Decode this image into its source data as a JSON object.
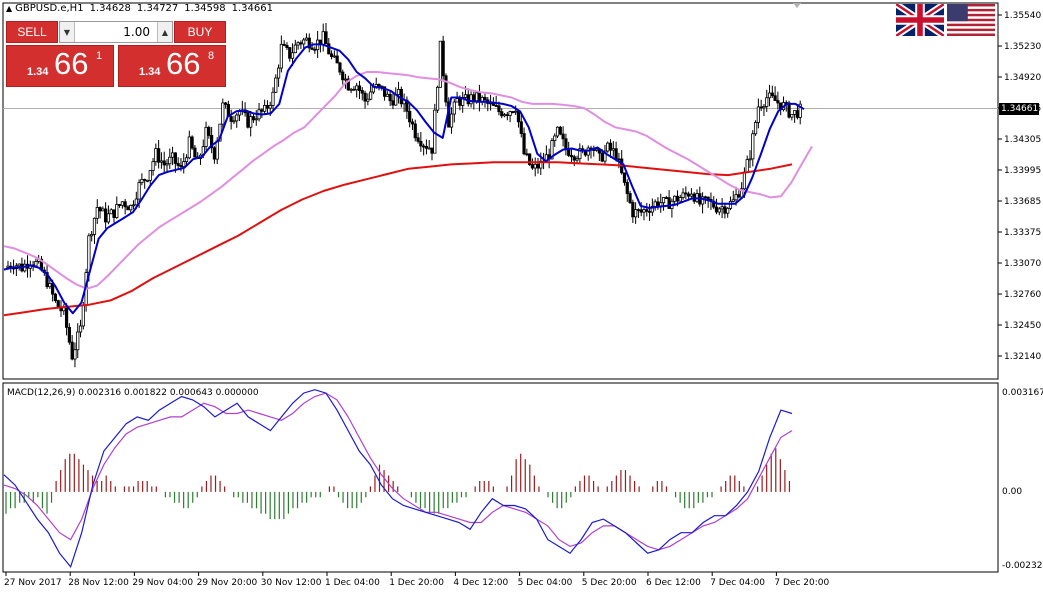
{
  "header": {
    "symbol": "GBPUSD.e,H1",
    "open": "1.34628",
    "high": "1.34727",
    "low": "1.34598",
    "close": "1.34661"
  },
  "trade_panel": {
    "sell_label": "SELL",
    "buy_label": "BUY",
    "lot_value": "1.00",
    "sell_price": {
      "prefix": "1.34",
      "big": "66",
      "sup": "1"
    },
    "buy_price": {
      "prefix": "1.34",
      "big": "66",
      "sup": "8"
    }
  },
  "flags": [
    "uk-flag-icon",
    "us-flag-icon"
  ],
  "macd": {
    "label": "MACD(12,26,9) 0.002316 0.001822 0.000643 0.000000",
    "axis_top": "0.003167",
    "axis_zero": "0.00",
    "axis_bottom": "-0.002323"
  },
  "current_price": "1.34661",
  "colors": {
    "bull": "#9a1c1c",
    "bear": "#2e7d32",
    "ma_fast": "#0000cc",
    "ma_mid": "#e08fe0",
    "ma_slow": "#e01010",
    "macd_line": "#1a1ad0",
    "signal_line": "#b040d0",
    "sell_buy": "#d32f2f"
  },
  "chart_data": {
    "type": "candlestick",
    "price_axis_ticks": [
      "1.35540",
      "1.35230",
      "1.34920",
      "1.34615",
      "1.34305",
      "1.33995",
      "1.33685",
      "1.33375",
      "1.33070",
      "1.32760",
      "1.32450",
      "1.32140"
    ],
    "time_axis_ticks": [
      "27 Nov 2017",
      "28 Nov 12:00",
      "29 Nov 04:00",
      "29 Nov 20:00",
      "30 Nov 12:00",
      "1 Dec 04:00",
      "1 Dec 20:00",
      "4 Dec 12:00",
      "5 Dec 04:00",
      "5 Dec 20:00",
      "6 Dec 12:00",
      "7 Dec 04:00",
      "7 Dec 20:00"
    ],
    "ylim": [
      1.3214,
      1.3566
    ],
    "macd_ylim": [
      -0.002323,
      0.003167
    ],
    "close_path": [
      1.3318,
      1.3322,
      1.3318,
      1.3325,
      1.332,
      1.3305,
      1.3285,
      1.3275,
      1.3235,
      1.326,
      1.3345,
      1.3375,
      1.3365,
      1.337,
      1.338,
      1.3375,
      1.3395,
      1.3405,
      1.3425,
      1.3415,
      1.342,
      1.341,
      1.3435,
      1.3415,
      1.3445,
      1.3425,
      1.347,
      1.346,
      1.3465,
      1.3455,
      1.3462,
      1.3465,
      1.348,
      1.3525,
      1.3518,
      1.353,
      1.3532,
      1.3528,
      1.3534,
      1.3515,
      1.3505,
      1.349,
      1.349,
      1.3475,
      1.3488,
      1.3485,
      1.3475,
      1.348,
      1.3466,
      1.3445,
      1.3435,
      1.343,
      1.3525,
      1.3455,
      1.3475,
      1.3475,
      1.3478,
      1.3475,
      1.347,
      1.3465,
      1.3465,
      1.347,
      1.3425,
      1.341,
      1.3415,
      1.3425,
      1.3445,
      1.343,
      1.3425,
      1.3425,
      1.3435,
      1.342,
      1.343,
      1.3425,
      1.3395,
      1.337,
      1.337,
      1.3375,
      1.338,
      1.3378,
      1.3382,
      1.3385,
      1.339,
      1.3378,
      1.338,
      1.3375,
      1.3375,
      1.338,
      1.3395,
      1.3425,
      1.347,
      1.3478,
      1.3475,
      1.347,
      1.3462,
      1.3466
    ],
    "series": [
      {
        "name": "MA fast",
        "values": [
          1.3316,
          1.3318,
          1.3318,
          1.332,
          1.3318,
          1.3312,
          1.33,
          1.3285,
          1.3275,
          1.3285,
          1.3315,
          1.3345,
          1.3355,
          1.336,
          1.3365,
          1.337,
          1.3382,
          1.3395,
          1.3405,
          1.3408,
          1.341,
          1.3412,
          1.342,
          1.3422,
          1.3432,
          1.3438,
          1.346,
          1.3465,
          1.3466,
          1.3463,
          1.3462,
          1.3463,
          1.3472,
          1.3503,
          1.3515,
          1.3525,
          1.3528,
          1.3528,
          1.3525,
          1.3522,
          1.3514,
          1.3502,
          1.3496,
          1.3488,
          1.3487,
          1.3484,
          1.3478,
          1.3474,
          1.3466,
          1.3455,
          1.3445,
          1.344,
          1.3478,
          1.3478,
          1.3475,
          1.3474,
          1.3474,
          1.3473,
          1.3472,
          1.347,
          1.3465,
          1.345,
          1.3425,
          1.3418,
          1.3424,
          1.3429,
          1.343,
          1.3428,
          1.3428,
          1.3431,
          1.3425,
          1.342,
          1.3415,
          1.3395,
          1.3376,
          1.3374,
          1.3375,
          1.3376,
          1.3377,
          1.338,
          1.3383,
          1.3383,
          1.3381,
          1.3378,
          1.3378,
          1.3378,
          1.3385,
          1.3403,
          1.3425,
          1.3448,
          1.3465,
          1.3472,
          1.3472,
          1.3467
        ]
      },
      {
        "name": "MA mid",
        "values": [
          1.3338,
          1.3336,
          1.3332,
          1.3328,
          1.3322,
          1.3315,
          1.3308,
          1.3302,
          1.3298,
          1.3301,
          1.331,
          1.332,
          1.333,
          1.334,
          1.3348,
          1.3356,
          1.3362,
          1.3368,
          1.3374,
          1.338,
          1.3387,
          1.3394,
          1.3402,
          1.341,
          1.3418,
          1.3425,
          1.3432,
          1.3438,
          1.3445,
          1.345,
          1.346,
          1.347,
          1.348,
          1.3492,
          1.3498,
          1.3502,
          1.3502,
          1.3501,
          1.35,
          1.3499,
          1.3497,
          1.3496,
          1.3495,
          1.3492,
          1.3488,
          1.3485,
          1.3483,
          1.3482,
          1.348,
          1.3478,
          1.3474,
          1.3472,
          1.3472,
          1.3472,
          1.3471,
          1.347,
          1.3468,
          1.3462,
          1.3455,
          1.345,
          1.3448,
          1.3446,
          1.3442,
          1.3436,
          1.343,
          1.3425,
          1.342,
          1.3414,
          1.3408,
          1.3402,
          1.3396,
          1.3391,
          1.3389,
          1.3387,
          1.3384,
          1.3385,
          1.3398,
          1.3415,
          1.3432
        ]
      },
      {
        "name": "MA slow",
        "values": [
          1.3273,
          1.3276,
          1.3279,
          1.3281,
          1.3283,
          1.3287,
          1.3296,
          1.3308,
          1.3318,
          1.3328,
          1.3338,
          1.3348,
          1.336,
          1.3372,
          1.3382,
          1.339,
          1.3396,
          1.3401,
          1.3406,
          1.3411,
          1.3413,
          1.3415,
          1.3416,
          1.3417,
          1.3417,
          1.3417,
          1.3417,
          1.3416,
          1.3415,
          1.3414,
          1.3412,
          1.341,
          1.3408,
          1.3406,
          1.3405,
          1.3408,
          1.3411,
          1.3415
        ]
      }
    ],
    "macd_histogram": [
      -4,
      -3,
      -3,
      -2,
      -2,
      -1,
      -2,
      -1,
      -3,
      -4,
      -2,
      2,
      4,
      6,
      7,
      7,
      6,
      5,
      4,
      3,
      2,
      2,
      3,
      2,
      1,
      0,
      1,
      1,
      1,
      2,
      2,
      2,
      1,
      1,
      0,
      -1,
      -1,
      -2,
      -2,
      -3,
      -3,
      -2,
      -1,
      1,
      2,
      3,
      3,
      2,
      1,
      0,
      -1,
      -1,
      -2,
      -2,
      -3,
      -3,
      -4,
      -4,
      -5,
      -5,
      -5,
      -5,
      -4,
      -3,
      -3,
      -2,
      -2,
      -1,
      -1,
      -1,
      0,
      1,
      1,
      -1,
      -2,
      -3,
      -3,
      -3,
      -2,
      -1,
      1,
      3,
      5,
      4,
      3,
      2,
      1,
      0,
      0,
      -1,
      -2,
      -3,
      -3,
      -4,
      -4,
      -4,
      -3,
      -3,
      -2,
      -2,
      -1,
      -1,
      0,
      1,
      2,
      2,
      2,
      1,
      0,
      0,
      1,
      3,
      6,
      7,
      6,
      5,
      3,
      1,
      0,
      -1,
      -2,
      -3,
      -3,
      -2,
      -1,
      1,
      2,
      3,
      3,
      2,
      1,
      0,
      1,
      2,
      3,
      4,
      4,
      3,
      2,
      1,
      0,
      0,
      1,
      2,
      2,
      1,
      0,
      -1,
      -2,
      -3,
      -3,
      -3,
      -2,
      -2,
      -1,
      -1,
      0,
      1,
      2,
      3,
      3,
      2,
      1,
      0,
      0,
      1,
      3,
      5,
      7,
      8,
      6,
      4,
      2
    ],
    "macd_line": [
      0.0005,
      0.0002,
      -0.0003,
      -0.0008,
      -0.0012,
      -0.0018,
      -0.0022,
      -0.0012,
      0.0002,
      0.0012,
      0.0016,
      0.002,
      0.0022,
      0.0021,
      0.0024,
      0.0026,
      0.0028,
      0.0027,
      0.0025,
      0.0022,
      0.0024,
      0.0026,
      0.0022,
      0.002,
      0.0018,
      0.0022,
      0.0026,
      0.0029,
      0.003,
      0.0029,
      0.0024,
      0.0018,
      0.0012,
      0.0008,
      0.0002,
      -0.0002,
      -0.0004,
      -0.0005,
      -0.0006,
      -0.0007,
      -0.0008,
      -0.0009,
      -0.0011,
      -0.0006,
      -0.0002,
      -0.0004,
      -0.0004,
      -0.0005,
      -0.0008,
      -0.0014,
      -0.0016,
      -0.0018,
      -0.0014,
      -0.0009,
      -0.0008,
      -0.001,
      -0.0012,
      -0.0015,
      -0.0018,
      -0.0017,
      -0.0014,
      -0.0012,
      -0.0012,
      -0.0009,
      -0.0007,
      -0.0007,
      -0.0004,
      0.0,
      0.0006,
      0.0016,
      0.0024,
      0.0023
    ],
    "signal_line": [
      0.0002,
      0.0001,
      -0.0001,
      -0.0004,
      -0.0008,
      -0.0012,
      -0.0014,
      -0.0008,
      0.0001,
      0.0008,
      0.0013,
      0.0017,
      0.0019,
      0.002,
      0.0021,
      0.0022,
      0.0022,
      0.0024,
      0.0026,
      0.0025,
      0.0023,
      0.0023,
      0.0024,
      0.0023,
      0.0022,
      0.0021,
      0.0023,
      0.0026,
      0.0028,
      0.0029,
      0.0027,
      0.0022,
      0.0016,
      0.001,
      0.0005,
      0.0001,
      -0.0002,
      -0.0004,
      -0.0006,
      -0.0006,
      -0.0007,
      -0.0008,
      -0.0009,
      -0.0009,
      -0.0006,
      -0.0004,
      -0.0005,
      -0.0006,
      -0.0008,
      -0.001,
      -0.0014,
      -0.0016,
      -0.0015,
      -0.0012,
      -0.001,
      -0.001,
      -0.0012,
      -0.0014,
      -0.0016,
      -0.0017,
      -0.0016,
      -0.0014,
      -0.0012,
      -0.001,
      -0.0009,
      -0.0007,
      -0.0005,
      -0.0002,
      0.0004,
      0.001,
      0.0016,
      0.0018
    ]
  }
}
